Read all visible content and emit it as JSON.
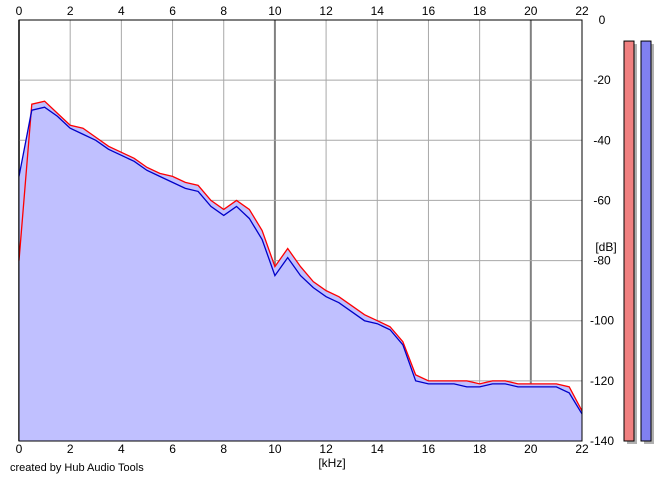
{
  "footer_text": "created by Hub Audio Tools",
  "colors": {
    "background": "#ffffff",
    "plot_bg": "#ffffff",
    "grid": "#a8a8a8",
    "grid_major": "#808080",
    "fill": "#c0c0ff",
    "left_channel": "#ff0000",
    "right_channel": "#0000c8",
    "meter_left": "#f08080",
    "meter_right": "#8080f0"
  },
  "chart_data": {
    "type": "area",
    "title": "",
    "xlabel": "[kHz]",
    "ylabel": "[dB]",
    "xlim": [
      0,
      22
    ],
    "ylim": [
      -140,
      0
    ],
    "x_ticks": [
      "0",
      "2",
      "4",
      "6",
      "8",
      "10",
      "12",
      "14",
      "16",
      "18",
      "20",
      "22"
    ],
    "y_ticks": [
      "0",
      "-20",
      "-40",
      "-60",
      "-80",
      "-100",
      "-120",
      "-140"
    ],
    "grid": true,
    "legend": "none",
    "x": [
      0,
      0.5,
      1,
      1.5,
      2,
      2.5,
      3,
      3.5,
      4,
      4.5,
      5,
      5.5,
      6,
      6.5,
      7,
      7.5,
      8,
      8.5,
      9,
      9.5,
      10,
      10.5,
      11,
      11.5,
      12,
      12.5,
      13,
      13.5,
      14,
      14.5,
      15,
      15.5,
      16,
      16.5,
      17,
      17.5,
      18,
      18.5,
      19,
      19.5,
      20,
      20.5,
      21,
      21.5,
      22
    ],
    "series": [
      {
        "values": [
          -80,
          -28,
          -27,
          -31,
          -35,
          -36,
          -39,
          -42,
          -44,
          -46,
          -49,
          -51,
          -52,
          -54,
          -55,
          -60,
          -63,
          -60,
          -63,
          -70,
          -82,
          -76,
          -82,
          -87,
          -90,
          -92,
          -95,
          -98,
          -100,
          -102,
          -107,
          -118,
          -120,
          -120,
          -120,
          -120,
          -121,
          -120,
          -120,
          -121,
          -121,
          -121,
          -121,
          -122,
          -130
        ]
      },
      {
        "values": [
          -52,
          -30,
          -29,
          -32,
          -36,
          -38,
          -40,
          -43,
          -45,
          -47,
          -50,
          -52,
          -54,
          -56,
          -57,
          -62,
          -65,
          -62,
          -66,
          -73,
          -85,
          -79,
          -85,
          -89,
          -92,
          -94,
          -97,
          -100,
          -101,
          -103,
          -108,
          -120,
          -121,
          -121,
          -121,
          -122,
          -122,
          -121,
          -121,
          -122,
          -122,
          -122,
          -122,
          -124,
          -131
        ]
      }
    ],
    "meters": {
      "left_level_db": -7,
      "right_level_db": -7
    }
  }
}
